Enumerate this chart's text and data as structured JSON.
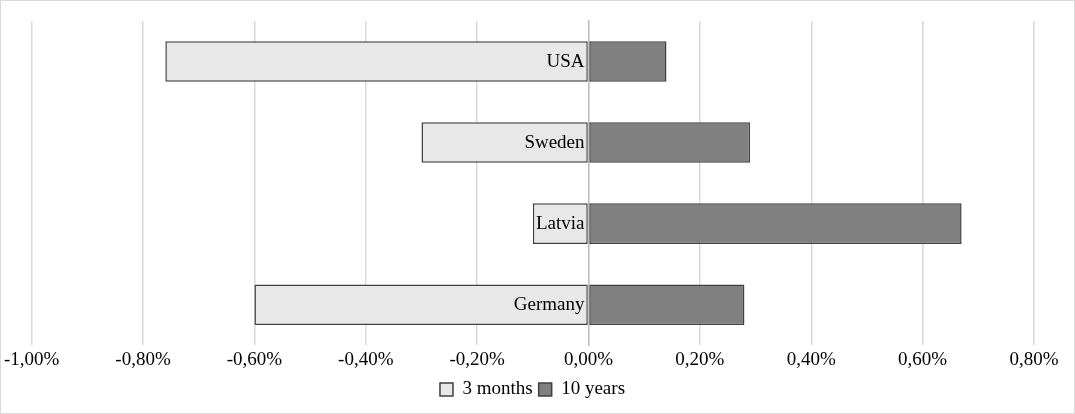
{
  "chart_data": {
    "type": "bar",
    "orientation": "horizontal",
    "stacked": true,
    "categories": [
      "USA",
      "Sweden",
      "Latvia",
      "Germany"
    ],
    "series": [
      {
        "name": "3 months",
        "color": "#e8e8e8",
        "values": [
          -0.76,
          -0.3,
          -0.1,
          -0.6
        ]
      },
      {
        "name": "10 years",
        "color": "#808080",
        "values": [
          0.14,
          0.29,
          0.67,
          0.28
        ]
      }
    ],
    "xlim": [
      -1,
      0.8
    ],
    "xticks": [
      {
        "value": -1,
        "label": "-1,00%"
      },
      {
        "value": -0.8,
        "label": "-0,80%"
      },
      {
        "value": -0.6,
        "label": "-0,60%"
      },
      {
        "value": -0.4,
        "label": "-0,40%"
      },
      {
        "value": -0.2,
        "label": "-0,20%"
      },
      {
        "value": 0,
        "label": "0,00%"
      },
      {
        "value": 0.2,
        "label": "0,20%"
      },
      {
        "value": 0.4,
        "label": "0,40%"
      },
      {
        "value": 0.6,
        "label": "0,60%"
      },
      {
        "value": 0.8,
        "label": "0,80%"
      }
    ],
    "grid": "x",
    "legend": "bottom"
  }
}
